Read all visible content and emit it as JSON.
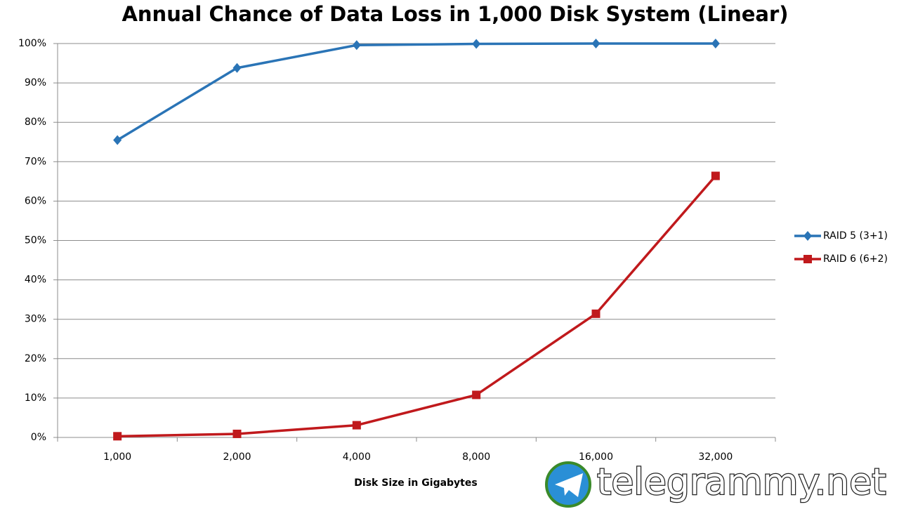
{
  "chart_data": {
    "type": "line",
    "title": "Annual Chance of Data Loss in 1,000 Disk System (Linear)",
    "x_label": "Disk Size in Gigabytes",
    "categories": [
      "1,000",
      "2,000",
      "4,000",
      "8,000",
      "16,000",
      "32,000"
    ],
    "series": [
      {
        "name": "RAID 5 (3+1)",
        "color": "#2a74b6",
        "marker": "diamond",
        "values": [
          75.5,
          93.8,
          99.6,
          99.9,
          100,
          100
        ]
      },
      {
        "name": "RAID 6 (6+2)",
        "color": "#c0191c",
        "marker": "square",
        "values": [
          0.3,
          0.9,
          3.1,
          10.8,
          31.4,
          66.4
        ]
      }
    ],
    "ylim": [
      0,
      100
    ],
    "yticks": [
      {
        "value": 0,
        "label": "0%"
      },
      {
        "value": 10,
        "label": "10%"
      },
      {
        "value": 20,
        "label": "20%"
      },
      {
        "value": 30,
        "label": "30%"
      },
      {
        "value": 40,
        "label": "40%"
      },
      {
        "value": 50,
        "label": "50%"
      },
      {
        "value": 60,
        "label": "60%"
      },
      {
        "value": 70,
        "label": "70%"
      },
      {
        "value": 80,
        "label": "80%"
      },
      {
        "value": 90,
        "label": "90%"
      },
      {
        "value": 100,
        "label": "100%"
      }
    ],
    "grid": true,
    "legend": "right",
    "watermark": "telegrammy.net"
  }
}
